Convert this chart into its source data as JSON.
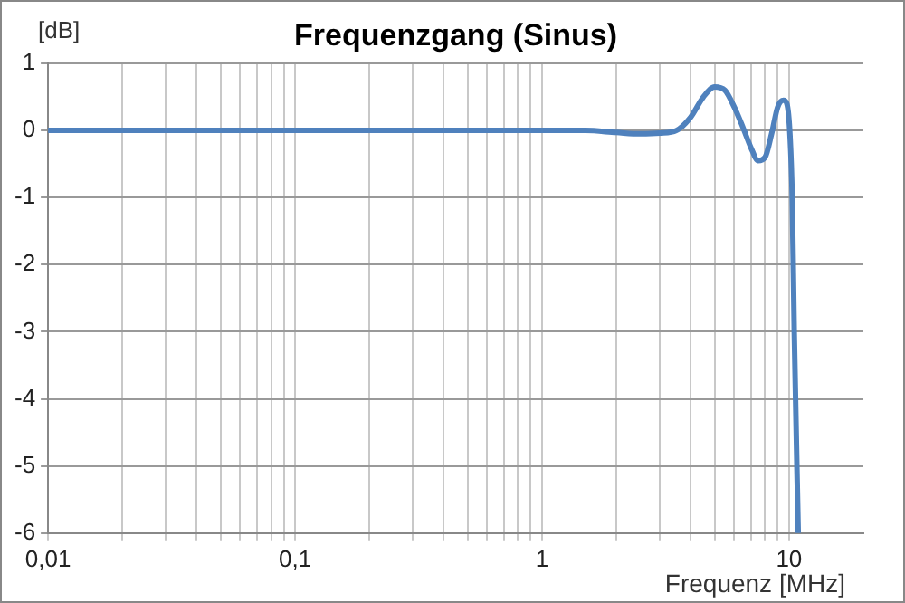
{
  "chart_data": {
    "type": "line",
    "title": "Frequenzgang (Sinus)",
    "xlabel": "Frequenz [MHz]",
    "ylabel": "[dB]",
    "log": "x",
    "grid": true,
    "legend": false,
    "marker": "none",
    "line_style": "solid",
    "xlim": [
      0.01,
      20
    ],
    "ylim": [
      -6,
      1
    ],
    "xticks": [
      {
        "value": 0.01,
        "label": "0,01"
      },
      {
        "value": 0.02,
        "label": null
      },
      {
        "value": 0.03,
        "label": null
      },
      {
        "value": 0.04,
        "label": null
      },
      {
        "value": 0.05,
        "label": null
      },
      {
        "value": 0.06,
        "label": null
      },
      {
        "value": 0.07,
        "label": null
      },
      {
        "value": 0.08,
        "label": null
      },
      {
        "value": 0.09,
        "label": null
      },
      {
        "value": 0.1,
        "label": "0,1"
      },
      {
        "value": 0.2,
        "label": null
      },
      {
        "value": 0.3,
        "label": null
      },
      {
        "value": 0.4,
        "label": null
      },
      {
        "value": 0.5,
        "label": null
      },
      {
        "value": 0.6,
        "label": null
      },
      {
        "value": 0.7,
        "label": null
      },
      {
        "value": 0.8,
        "label": null
      },
      {
        "value": 0.9,
        "label": null
      },
      1,
      {
        "value": 2,
        "label": null
      },
      {
        "value": 3,
        "label": null
      },
      {
        "value": 4,
        "label": null
      },
      {
        "value": 5,
        "label": null
      },
      {
        "value": 6,
        "label": null
      },
      {
        "value": 7,
        "label": null
      },
      {
        "value": 8,
        "label": null
      },
      {
        "value": 9,
        "label": null
      },
      10
    ],
    "yticks": [
      -6,
      -5,
      -4,
      -3,
      -2,
      -1,
      0,
      1
    ],
    "series": [
      {
        "color": "#4f81bd",
        "x": [
          0.01,
          0.1,
          1,
          1.5,
          2,
          2.5,
          3,
          3.5,
          4,
          4.5,
          5,
          5.5,
          6,
          6.5,
          7,
          7.5,
          8,
          8.5,
          9,
          9.5,
          9.8,
          10.1,
          10.3,
          10.5,
          10.9
        ],
        "values": [
          0,
          0,
          0,
          0,
          -0.03,
          -0.05,
          -0.04,
          0,
          0.2,
          0.5,
          0.65,
          0.6,
          0.35,
          0.05,
          -0.25,
          -0.45,
          -0.4,
          -0.05,
          0.35,
          0.45,
          0.4,
          -0.1,
          -1,
          -3,
          -6
        ]
      }
    ]
  }
}
